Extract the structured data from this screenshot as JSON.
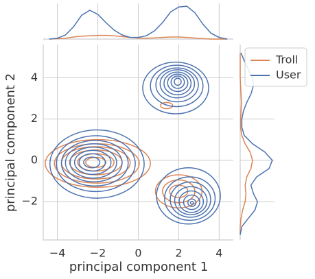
{
  "chart_data": {
    "type": "kde",
    "xlabel": "principal component 1",
    "ylabel": "principal component 2",
    "xlim": [
      -4.7,
      4.7
    ],
    "ylim": [
      -3.85,
      5.6
    ],
    "xticks": [
      {
        "value": -4,
        "label": "−4"
      },
      {
        "value": -2,
        "label": "−2"
      },
      0,
      2,
      4
    ],
    "yticks": [
      {
        "value": -2,
        "label": "−2"
      },
      0,
      2,
      4
    ],
    "grid": true,
    "legend": "upper right",
    "marginal_x_grid": [
      -4.4,
      -4.0,
      -3.6,
      -3.2,
      -2.8,
      -2.4,
      -2.0,
      -1.6,
      -1.2,
      -0.8,
      -0.4,
      0,
      0.4,
      0.8,
      1.2,
      1.6,
      2.0,
      2.4,
      2.8,
      3.2,
      3.6,
      4.0,
      4.4
    ],
    "marginal_y_grid": [
      -3.6,
      -3.2,
      -2.8,
      -2.4,
      -2.0,
      -1.6,
      -1.2,
      -0.8,
      -0.4,
      0,
      0.4,
      0.8,
      1.2,
      1.6,
      2.0,
      2.4,
      2.8,
      3.2,
      3.6,
      4.0,
      4.4,
      4.8,
      5.2
    ],
    "series": [
      {
        "name": "Troll",
        "color": "#dd8452",
        "x_density": [
          0,
          0.005,
          0.01,
          0.025,
          0.035,
          0.04,
          0.045,
          0.045,
          0.04,
          0.03,
          0.02,
          0.012,
          0.01,
          0.015,
          0.02,
          0.025,
          0.025,
          0.02,
          0.012,
          0.005,
          0,
          0,
          0
        ],
        "y_density": [
          0,
          0,
          0.01,
          0.03,
          0.06,
          0.07,
          0.06,
          0.08,
          0.13,
          0.15,
          0.12,
          0.06,
          0.02,
          0.005,
          0.005,
          0.01,
          0.015,
          0.01,
          0.005,
          0,
          0,
          0,
          0
        ],
        "contours": [
          {
            "cx": -2.0,
            "cy": -0.15,
            "rx": 2.6,
            "ry": 1.15
          },
          {
            "cx": -2.05,
            "cy": -0.15,
            "rx": 2.1,
            "ry": 0.95
          },
          {
            "cx": -2.1,
            "cy": -0.12,
            "rx": 1.7,
            "ry": 0.78
          },
          {
            "cx": -2.1,
            "cy": -0.1,
            "rx": 1.3,
            "ry": 0.6
          },
          {
            "cx": -2.1,
            "cy": -0.1,
            "rx": 0.9,
            "ry": 0.42
          },
          {
            "cx": -2.1,
            "cy": -0.1,
            "rx": 0.5,
            "ry": 0.24
          },
          {
            "cx": 2.0,
            "cy": -1.5,
            "rx": 1.15,
            "ry": 0.8
          },
          {
            "cx": 2.0,
            "cy": -1.5,
            "rx": 0.8,
            "ry": 0.55
          },
          {
            "cx": 2.0,
            "cy": -1.5,
            "rx": 0.45,
            "ry": 0.3
          },
          {
            "cx": 1.4,
            "cy": 2.65,
            "rx": 0.3,
            "ry": 0.15
          }
        ]
      },
      {
        "name": "User",
        "color": "#4c72b0",
        "x_density": [
          0.0,
          0.01,
          0.05,
          0.15,
          0.29,
          0.35,
          0.3,
          0.2,
          0.11,
          0.05,
          0.02,
          0.02,
          0.04,
          0.1,
          0.2,
          0.33,
          0.39,
          0.4,
          0.32,
          0.18,
          0.07,
          0.02,
          0.0
        ],
        "y_density": [
          0.0,
          0.02,
          0.1,
          0.18,
          0.21,
          0.16,
          0.13,
          0.2,
          0.35,
          0.39,
          0.3,
          0.15,
          0.05,
          0.02,
          0.02,
          0.04,
          0.08,
          0.13,
          0.16,
          0.15,
          0.1,
          0.05,
          0.01
        ],
        "contours": [
          {
            "cx": 1.85,
            "cy": 3.5,
            "rx": 1.63,
            "ry": 1.25
          },
          {
            "cx": 1.9,
            "cy": 3.6,
            "rx": 1.3,
            "ry": 1.0
          },
          {
            "cx": 1.92,
            "cy": 3.65,
            "rx": 1.05,
            "ry": 0.82
          },
          {
            "cx": 1.93,
            "cy": 3.7,
            "rx": 0.85,
            "ry": 0.68
          },
          {
            "cx": 1.94,
            "cy": 3.72,
            "rx": 0.67,
            "ry": 0.55
          },
          {
            "cx": 1.95,
            "cy": 3.75,
            "rx": 0.5,
            "ry": 0.42
          },
          {
            "cx": 1.95,
            "cy": 3.78,
            "rx": 0.33,
            "ry": 0.3
          },
          {
            "cx": 1.95,
            "cy": 3.8,
            "rx": 0.17,
            "ry": 0.17
          },
          {
            "cx": -2.04,
            "cy": -0.18,
            "rx": 2.33,
            "ry": 1.65
          },
          {
            "cx": -2.1,
            "cy": -0.16,
            "rx": 1.95,
            "ry": 1.35
          },
          {
            "cx": -2.15,
            "cy": -0.14,
            "rx": 1.65,
            "ry": 1.1
          },
          {
            "cx": -2.2,
            "cy": -0.12,
            "rx": 1.4,
            "ry": 0.92
          },
          {
            "cx": -2.22,
            "cy": -0.11,
            "rx": 1.15,
            "ry": 0.75
          },
          {
            "cx": -2.25,
            "cy": -0.1,
            "rx": 0.9,
            "ry": 0.58
          },
          {
            "cx": -2.28,
            "cy": -0.1,
            "rx": 0.65,
            "ry": 0.42
          },
          {
            "cx": -2.3,
            "cy": -0.1,
            "rx": 0.4,
            "ry": 0.26
          },
          {
            "cx": 2.48,
            "cy": -1.72,
            "rx": 1.58,
            "ry": 1.36
          },
          {
            "cx": 2.55,
            "cy": -1.85,
            "rx": 1.25,
            "ry": 1.05
          },
          {
            "cx": 2.58,
            "cy": -1.9,
            "rx": 1.0,
            "ry": 0.85
          },
          {
            "cx": 2.6,
            "cy": -1.95,
            "rx": 0.8,
            "ry": 0.68
          },
          {
            "cx": 2.62,
            "cy": -2.0,
            "rx": 0.6,
            "ry": 0.52
          },
          {
            "cx": 2.64,
            "cy": -2.03,
            "rx": 0.4,
            "ry": 0.35
          },
          {
            "cx": 2.65,
            "cy": -2.05,
            "rx": 0.2,
            "ry": 0.18
          },
          {
            "cx": 2.65,
            "cy": -2.05,
            "rx": 0.07,
            "ry": 0.07
          }
        ]
      }
    ]
  }
}
